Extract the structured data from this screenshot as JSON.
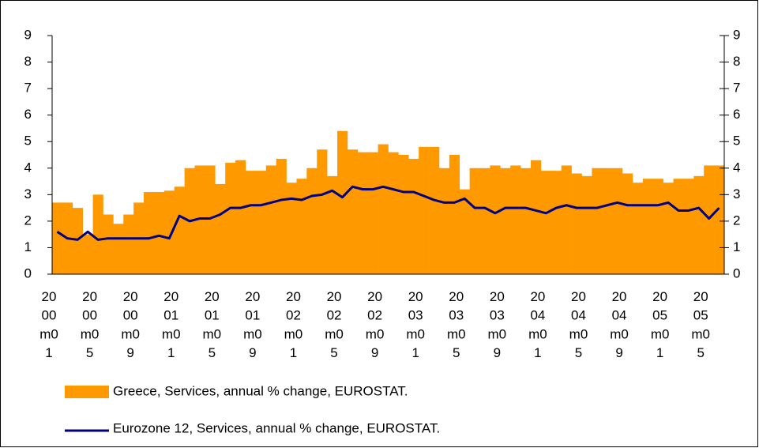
{
  "chart_data": {
    "type": "bar-line",
    "categories": [
      "2000m01",
      null,
      null,
      null,
      "2000m05",
      null,
      null,
      null,
      "2000m09",
      null,
      null,
      null,
      "2001m01",
      null,
      null,
      null,
      "2001m05",
      null,
      null,
      null,
      "2001m09",
      null,
      null,
      null,
      "2002m01",
      null,
      null,
      null,
      "2002m05",
      null,
      null,
      null,
      "2002m09",
      null,
      null,
      null,
      "2003m01",
      null,
      null,
      null,
      "2003m05",
      null,
      null,
      null,
      "2003m09",
      null,
      null,
      null,
      "2004m01",
      null,
      null,
      null,
      "2004m05",
      null,
      null,
      null,
      "2004m09",
      null,
      null,
      null,
      "2005m01",
      null,
      null,
      null,
      "2005m05",
      null
    ],
    "series": [
      {
        "name": "Greece, Services, annual % change, EUROSTAT.",
        "kind": "bar",
        "color": "#ff9900",
        "values": [
          2.7,
          2.7,
          2.5,
          1.5,
          3.0,
          2.25,
          1.9,
          2.25,
          2.7,
          3.1,
          3.1,
          3.15,
          3.3,
          4.0,
          4.1,
          4.1,
          3.4,
          4.2,
          4.3,
          3.9,
          3.9,
          4.1,
          4.35,
          3.45,
          3.6,
          4.0,
          4.7,
          3.7,
          5.4,
          4.7,
          4.6,
          4.6,
          4.9,
          4.6,
          4.5,
          4.35,
          4.8,
          4.8,
          4.0,
          4.5,
          3.2,
          4.0,
          4.0,
          4.1,
          4.0,
          4.1,
          4.0,
          4.3,
          3.9,
          3.9,
          4.1,
          3.8,
          3.7,
          4.0,
          4.0,
          4.0,
          3.8,
          3.45,
          3.6,
          3.6,
          3.45,
          3.6,
          3.6,
          3.7,
          4.1,
          4.1
        ]
      },
      {
        "name": "Eurozone 12, Services, annual % change, EUROSTAT.",
        "kind": "line",
        "color": "#000080",
        "values": [
          1.6,
          1.35,
          1.3,
          1.6,
          1.3,
          1.35,
          1.35,
          1.35,
          1.35,
          1.35,
          1.45,
          1.35,
          2.2,
          2.0,
          2.1,
          2.1,
          2.25,
          2.5,
          2.5,
          2.6,
          2.6,
          2.7,
          2.8,
          2.85,
          2.8,
          2.95,
          3.0,
          3.15,
          2.9,
          3.3,
          3.2,
          3.2,
          3.3,
          3.2,
          3.1,
          3.1,
          2.95,
          2.8,
          2.7,
          2.7,
          2.85,
          2.5,
          2.5,
          2.3,
          2.5,
          2.5,
          2.5,
          2.4,
          2.3,
          2.5,
          2.6,
          2.5,
          2.5,
          2.5,
          2.6,
          2.7,
          2.6,
          2.6,
          2.6,
          2.6,
          2.7,
          2.4,
          2.4,
          2.5,
          2.1,
          2.5
        ]
      }
    ],
    "ylim": [
      0,
      9
    ],
    "yticks": [
      0,
      1,
      2,
      3,
      4,
      5,
      6,
      7,
      8,
      9
    ],
    "y2lim": [
      0,
      9
    ],
    "y2ticks": [
      0,
      1,
      2,
      3,
      4,
      5,
      6,
      7,
      8,
      9
    ]
  }
}
